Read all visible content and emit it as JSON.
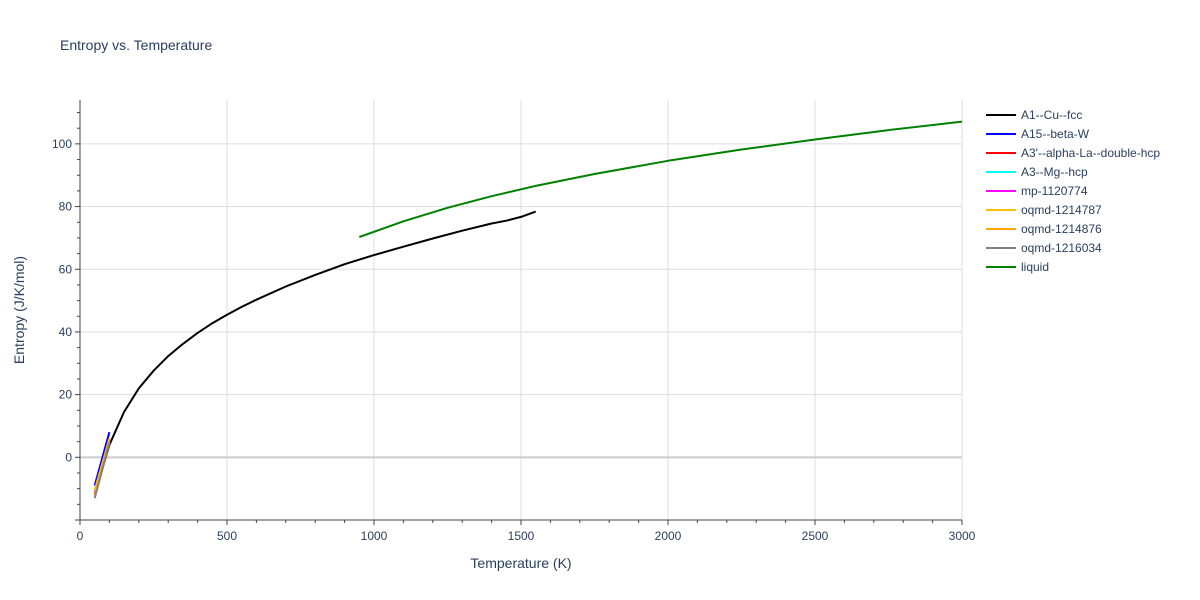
{
  "chart_data": {
    "type": "line",
    "title": "Entropy vs. Temperature",
    "xlabel": "Temperature (K)",
    "ylabel": "Entropy (J/K/mol)",
    "xlim": [
      0,
      3000
    ],
    "ylim": [
      -20,
      114
    ],
    "xticks": [
      0,
      500,
      1000,
      1500,
      2000,
      2500,
      3000
    ],
    "yticks": [
      0,
      20,
      40,
      60,
      80,
      100
    ],
    "grid": true,
    "legend_position": "right",
    "series": [
      {
        "name": "A1--Cu--fcc",
        "color": "#000000",
        "x": [
          50,
          100,
          150,
          200,
          250,
          300,
          350,
          400,
          450,
          500,
          550,
          600,
          700,
          800,
          900,
          1000,
          1100,
          1200,
          1300,
          1400,
          1450,
          1500,
          1550
        ],
        "y": [
          -12,
          4,
          14.5,
          22,
          27.6,
          32.3,
          36.2,
          39.7,
          42.8,
          45.5,
          48.0,
          50.3,
          54.5,
          58.2,
          61.6,
          64.5,
          67.2,
          69.8,
          72.3,
          74.6,
          75.5,
          76.7,
          78.4
        ]
      },
      {
        "name": "A15--beta-W",
        "color": "#0000ff",
        "x": [
          50,
          100
        ],
        "y": [
          -9,
          8
        ]
      },
      {
        "name": "A3'--alpha-La--double-hcp",
        "color": "#ff0000",
        "x": [
          50,
          100
        ],
        "y": [
          -11,
          6
        ]
      },
      {
        "name": "A3--Mg--hcp",
        "color": "#00ffff",
        "x": [
          50,
          100
        ],
        "y": [
          -11,
          5.5
        ]
      },
      {
        "name": "mp-1120774",
        "color": "#ff00ff",
        "x": [
          50,
          100
        ],
        "y": [
          -11.5,
          5.5
        ]
      },
      {
        "name": "oqmd-1214787",
        "color": "#ffbf00",
        "x": [
          50,
          100
        ],
        "y": [
          -10.5,
          6
        ]
      },
      {
        "name": "oqmd-1214876",
        "color": "#ffa500",
        "x": [
          50,
          100
        ],
        "y": [
          -12,
          5
        ]
      },
      {
        "name": "oqmd-1216034",
        "color": "#808080",
        "x": [
          50,
          100
        ],
        "y": [
          -13,
          4.5
        ]
      },
      {
        "name": "liquid",
        "color": "#008000",
        "x": [
          950,
          1100,
          1250,
          1400,
          1550,
          1750,
          2000,
          2250,
          2500,
          2750,
          3000
        ],
        "y": [
          70.3,
          75.3,
          79.6,
          83.3,
          86.6,
          90.4,
          94.6,
          98.2,
          101.4,
          104.4,
          107.1
        ]
      }
    ]
  }
}
